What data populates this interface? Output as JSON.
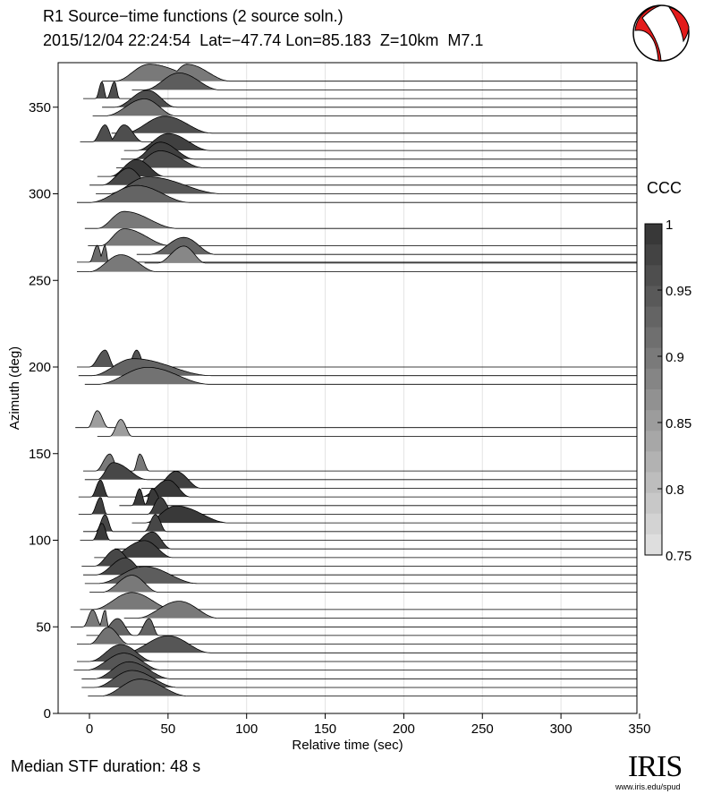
{
  "header": {
    "title": "R1 Source−time functions (2 source soln.)",
    "subtitle": "2015/12/04 22:24:54  Lat=−47.74 Lon=85.183  Z=10km  M7.1"
  },
  "footer": {
    "median": "Median STF duration: 48 s"
  },
  "logo": {
    "name": "IRIS",
    "url": "www.iris.edu/spud",
    "icon": "beachball-icon"
  },
  "colorbar": {
    "title": "CCC",
    "ticks": [
      "1",
      "0.95",
      "0.9",
      "0.85",
      "0.8",
      "0.75"
    ],
    "range": [
      0.75,
      1.0
    ]
  },
  "chart_data": {
    "type": "ridgeline",
    "xlabel": "Relative time (sec)",
    "ylabel": "Azimuth (deg)",
    "xlim": [
      -20,
      350
    ],
    "ylim": [
      0,
      375
    ],
    "xticks": [
      "0",
      "50",
      "100",
      "150",
      "200",
      "250",
      "300",
      "350"
    ],
    "yticks": [
      "0",
      "50",
      "100",
      "150",
      "200",
      "250",
      "300",
      "350"
    ],
    "grid": "vertical",
    "traces": [
      {
        "az": 10,
        "ccc": 0.94,
        "pulses": [
          [
            32,
            25,
            31
          ]
        ]
      },
      {
        "az": 15,
        "ccc": 0.95,
        "pulses": [
          [
            27,
            24,
            29
          ]
        ]
      },
      {
        "az": 20,
        "ccc": 0.96,
        "pulses": [
          [
            25,
            22,
            27
          ]
        ]
      },
      {
        "az": 25,
        "ccc": 0.95,
        "pulses": [
          [
            22,
            24,
            24
          ]
        ]
      },
      {
        "az": 30,
        "ccc": 0.96,
        "pulses": [
          [
            20,
            20,
            21
          ]
        ]
      },
      {
        "az": 35,
        "ccc": 0.95,
        "pulses": [
          [
            50,
            28,
            27
          ]
        ]
      },
      {
        "az": 40,
        "ccc": 0.91,
        "pulses": [
          [
            12,
            12,
            13
          ]
        ]
      },
      {
        "az": 45,
        "ccc": 0.93,
        "pulses": [
          [
            18,
            12,
            10
          ],
          [
            38,
            8,
            6
          ]
        ]
      },
      {
        "az": 50,
        "ccc": 0.9,
        "pulses": [
          [
            2,
            6,
            6
          ],
          [
            10,
            4,
            2
          ]
        ]
      },
      {
        "az": 55,
        "ccc": 0.9,
        "pulses": [
          [
            57,
            27,
            25
          ]
        ]
      },
      {
        "az": 60,
        "ccc": 0.9,
        "pulses": [
          [
            27,
            25,
            27
          ]
        ]
      },
      {
        "az": 70,
        "ccc": 0.9,
        "pulses": [
          [
            27,
            19,
            17
          ]
        ]
      },
      {
        "az": 75,
        "ccc": 0.94,
        "pulses": [
          [
            35,
            30,
            34
          ]
        ]
      },
      {
        "az": 80,
        "ccc": 0.97,
        "pulses": [
          [
            23,
            19,
            14
          ]
        ]
      },
      {
        "az": 85,
        "ccc": 0.97,
        "pulses": [
          [
            17,
            14,
            13
          ]
        ]
      },
      {
        "az": 90,
        "ccc": 0.98,
        "pulses": [
          [
            35,
            24,
            18
          ]
        ]
      },
      {
        "az": 95,
        "ccc": 0.98,
        "pulses": [
          [
            40,
            16,
            12
          ]
        ]
      },
      {
        "az": 100,
        "ccc": 0.99,
        "pulses": [
          [
            8,
            6,
            5
          ]
        ]
      },
      {
        "az": 105,
        "ccc": 0.97,
        "pulses": [
          [
            10,
            6,
            5
          ],
          [
            42,
            7,
            7
          ]
        ]
      },
      {
        "az": 110,
        "ccc": 0.99,
        "pulses": [
          [
            55,
            20,
            34
          ]
        ]
      },
      {
        "az": 115,
        "ccc": 0.98,
        "pulses": [
          [
            7,
            6,
            4
          ],
          [
            45,
            8,
            9
          ]
        ]
      },
      {
        "az": 120,
        "ccc": 0.99,
        "pulses": [
          [
            32,
            5,
            4
          ],
          [
            40,
            5,
            8
          ]
        ]
      },
      {
        "az": 125,
        "ccc": 0.99,
        "pulses": [
          [
            7,
            6,
            5
          ],
          [
            50,
            17,
            14
          ]
        ]
      },
      {
        "az": 130,
        "ccc": 0.98,
        "pulses": [
          [
            55,
            14,
            16
          ]
        ]
      },
      {
        "az": 135,
        "ccc": 0.97,
        "pulses": [
          [
            15,
            10,
            22
          ]
        ]
      },
      {
        "az": 140,
        "ccc": 0.9,
        "pulses": [
          [
            13,
            9,
            6
          ],
          [
            32,
            4,
            6
          ]
        ]
      },
      {
        "az": 160,
        "ccc": 0.85,
        "pulses": [
          [
            20,
            7,
            7
          ]
        ]
      },
      {
        "az": 165,
        "ccc": 0.85,
        "pulses": [
          [
            5,
            6,
            7
          ]
        ]
      },
      {
        "az": 190,
        "ccc": 0.91,
        "pulses": [
          [
            37,
            32,
            40
          ]
        ]
      },
      {
        "az": 195,
        "ccc": 0.93,
        "pulses": [
          [
            28,
            27,
            50
          ]
        ]
      },
      {
        "az": 200,
        "ccc": 0.95,
        "pulses": [
          [
            10,
            10,
            6
          ],
          [
            30,
            6,
            6
          ]
        ]
      },
      {
        "az": 255,
        "ccc": 0.9,
        "pulses": [
          [
            20,
            20,
            23
          ]
        ]
      },
      {
        "az": 260,
        "ccc": 0.88,
        "pulses": [
          [
            60,
            17,
            14
          ]
        ]
      },
      {
        "az": 260.5,
        "ccc": 0.92,
        "pulses": [
          [
            5,
            5,
            4
          ],
          [
            10,
            4,
            2
          ]
        ]
      },
      {
        "az": 265,
        "ccc": 0.93,
        "pulses": [
          [
            60,
            22,
            20
          ]
        ]
      },
      {
        "az": 270,
        "ccc": 0.9,
        "pulses": [
          [
            22,
            15,
            30
          ]
        ]
      },
      {
        "az": 280,
        "ccc": 0.9,
        "pulses": [
          [
            22,
            17,
            34
          ]
        ]
      },
      {
        "az": 295,
        "ccc": 0.93,
        "pulses": [
          [
            30,
            30,
            34
          ]
        ]
      },
      {
        "az": 300,
        "ccc": 0.95,
        "pulses": [
          [
            37,
            25,
            48
          ]
        ]
      },
      {
        "az": 305,
        "ccc": 0.97,
        "pulses": [
          [
            25,
            17,
            14
          ]
        ]
      },
      {
        "az": 310,
        "ccc": 0.99,
        "pulses": [
          [
            30,
            17,
            18
          ]
        ]
      },
      {
        "az": 315,
        "ccc": 0.96,
        "pulses": [
          [
            45,
            20,
            28
          ]
        ]
      },
      {
        "az": 320,
        "ccc": 0.98,
        "pulses": [
          [
            45,
            17,
            22
          ]
        ]
      },
      {
        "az": 325,
        "ccc": 0.98,
        "pulses": [
          [
            50,
            20,
            27
          ]
        ]
      },
      {
        "az": 330,
        "ccc": 0.96,
        "pulses": [
          [
            10,
            8,
            6
          ],
          [
            22,
            10,
            12
          ]
        ]
      },
      {
        "az": 335,
        "ccc": 0.96,
        "pulses": [
          [
            48,
            26,
            30
          ]
        ]
      },
      {
        "az": 345,
        "ccc": 0.91,
        "pulses": [
          [
            35,
            25,
            20
          ]
        ]
      },
      {
        "az": 350,
        "ccc": 0.96,
        "pulses": [
          [
            37,
            21,
            18
          ]
        ]
      },
      {
        "az": 355,
        "ccc": 0.96,
        "pulses": [
          [
            8,
            4,
            3
          ],
          [
            16,
            5,
            3
          ]
        ]
      },
      {
        "az": 360,
        "ccc": 0.94,
        "pulses": [
          [
            57,
            22,
            26
          ]
        ]
      },
      {
        "az": 365,
        "ccc": 0.9,
        "pulses": [
          [
            38,
            22,
            40
          ],
          [
            62,
            14,
            28
          ]
        ]
      }
    ]
  }
}
